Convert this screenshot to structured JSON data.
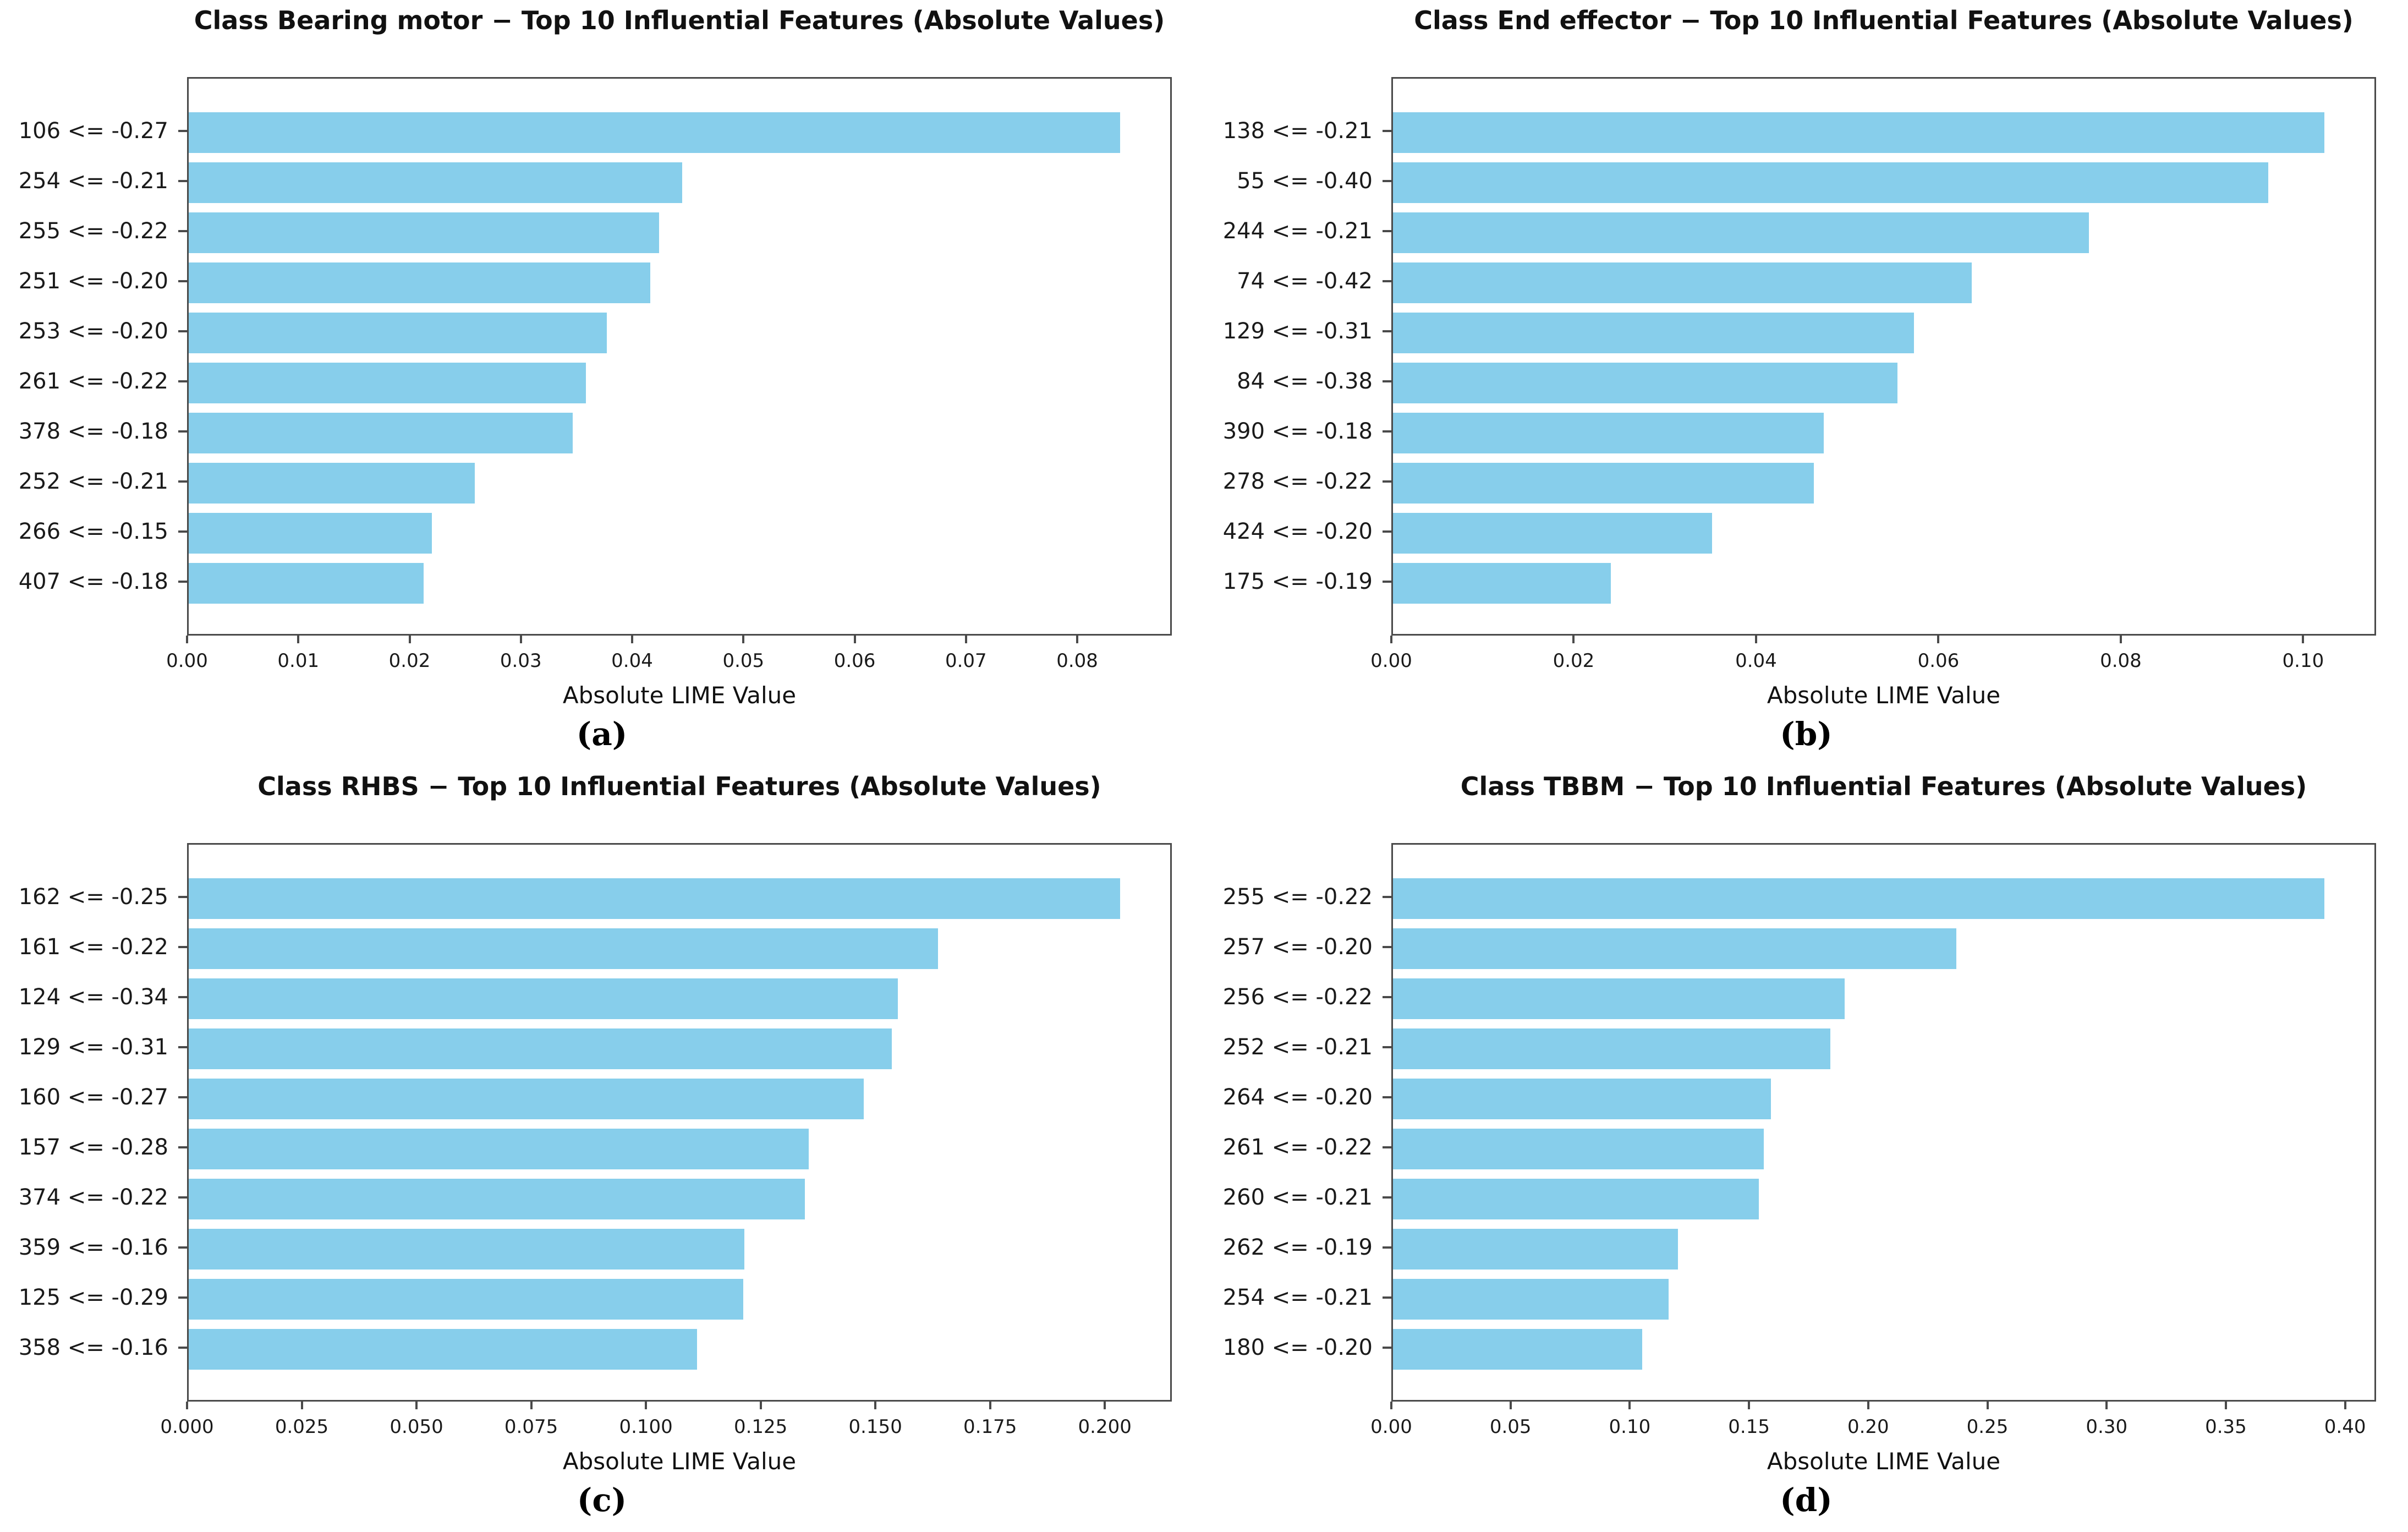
{
  "figure": {
    "background": "#ffffff",
    "bar_color": "#87CEEB",
    "spine_color": "#4a4a4a",
    "grid": "off",
    "legend": "none"
  },
  "chart_data": [
    {
      "type": "bar",
      "orientation": "horizontal",
      "title": "Class Bearing motor − Top 10 Influential Features (Absolute Values)",
      "caption": "(a)",
      "xlabel": "Absolute LIME Value",
      "ylabel": "",
      "xlim": [
        0,
        0.0885
      ],
      "xtick_values": [
        0.0,
        0.01,
        0.02,
        0.03,
        0.04,
        0.05,
        0.06,
        0.07,
        0.08
      ],
      "xtick_labels": [
        "0.00",
        "0.01",
        "0.02",
        "0.03",
        "0.04",
        "0.05",
        "0.06",
        "0.07",
        "0.08"
      ],
      "categories": [
        "106 <= -0.27",
        "254 <= -0.21",
        "255 <= -0.22",
        "251 <= -0.20",
        "253 <= -0.20",
        "261 <= -0.22",
        "378 <= -0.18",
        "252 <= -0.21",
        "266 <= -0.15",
        "407 <= -0.18"
      ],
      "values": [
        0.084,
        0.0445,
        0.0424,
        0.0416,
        0.0377,
        0.0358,
        0.0346,
        0.0258,
        0.0219,
        0.0212
      ]
    },
    {
      "type": "bar",
      "orientation": "horizontal",
      "title": "Class End effector − Top 10 Influential Features (Absolute Values)",
      "caption": "(b)",
      "xlabel": "Absolute LIME Value",
      "ylabel": "",
      "xlim": [
        0,
        0.108
      ],
      "xtick_values": [
        0.0,
        0.02,
        0.04,
        0.06,
        0.08,
        0.1
      ],
      "xtick_labels": [
        "0.00",
        "0.02",
        "0.04",
        "0.06",
        "0.08",
        "0.10"
      ],
      "categories": [
        "138 <= -0.21",
        "55 <= -0.40",
        "244 <= -0.21",
        "74 <= -0.42",
        "129 <= -0.31",
        "84 <= -0.38",
        "390 <= -0.18",
        "278 <= -0.22",
        "424 <= -0.20",
        "175 <= -0.19"
      ],
      "values": [
        0.1025,
        0.0963,
        0.0766,
        0.0637,
        0.0573,
        0.0555,
        0.0474,
        0.0463,
        0.0351,
        0.024
      ]
    },
    {
      "type": "bar",
      "orientation": "horizontal",
      "title": "Class RHBS − Top 10 Influential Features (Absolute Values)",
      "caption": "(c)",
      "xlabel": "Absolute LIME Value",
      "ylabel": "",
      "xlim": [
        0,
        0.2146
      ],
      "xtick_values": [
        0.0,
        0.025,
        0.05,
        0.075,
        0.1,
        0.125,
        0.15,
        0.175,
        0.2
      ],
      "xtick_labels": [
        "0.000",
        "0.025",
        "0.050",
        "0.075",
        "0.100",
        "0.125",
        "0.150",
        "0.175",
        "0.200"
      ],
      "categories": [
        "162 <= -0.25",
        "161 <= -0.22",
        "124 <= -0.34",
        "129 <= -0.31",
        "160 <= -0.27",
        "157 <= -0.28",
        "374 <= -0.22",
        "359 <= -0.16",
        "125 <= -0.29",
        "358 <= -0.16"
      ],
      "values": [
        0.2037,
        0.1638,
        0.1551,
        0.1537,
        0.1476,
        0.1356,
        0.1347,
        0.1215,
        0.1212,
        0.1112
      ]
    },
    {
      "type": "bar",
      "orientation": "horizontal",
      "title": "Class TBBM − Top 10 Influential Features (Absolute Values)",
      "caption": "(d)",
      "xlabel": "Absolute LIME Value",
      "ylabel": "",
      "xlim": [
        0,
        0.413
      ],
      "xtick_values": [
        0.0,
        0.05,
        0.1,
        0.15,
        0.2,
        0.25,
        0.3,
        0.35,
        0.4
      ],
      "xtick_labels": [
        "0.00",
        "0.05",
        "0.10",
        "0.15",
        "0.20",
        "0.25",
        "0.30",
        "0.35",
        "0.40"
      ],
      "categories": [
        "255 <= -0.22",
        "257 <= -0.20",
        "256 <= -0.22",
        "252 <= -0.21",
        "264 <= -0.20",
        "261 <= -0.22",
        "260 <= -0.21",
        "262 <= -0.19",
        "254 <= -0.21",
        "180 <= -0.20"
      ],
      "values": [
        0.392,
        0.237,
        0.19,
        0.184,
        0.159,
        0.156,
        0.154,
        0.12,
        0.116,
        0.105
      ]
    }
  ]
}
